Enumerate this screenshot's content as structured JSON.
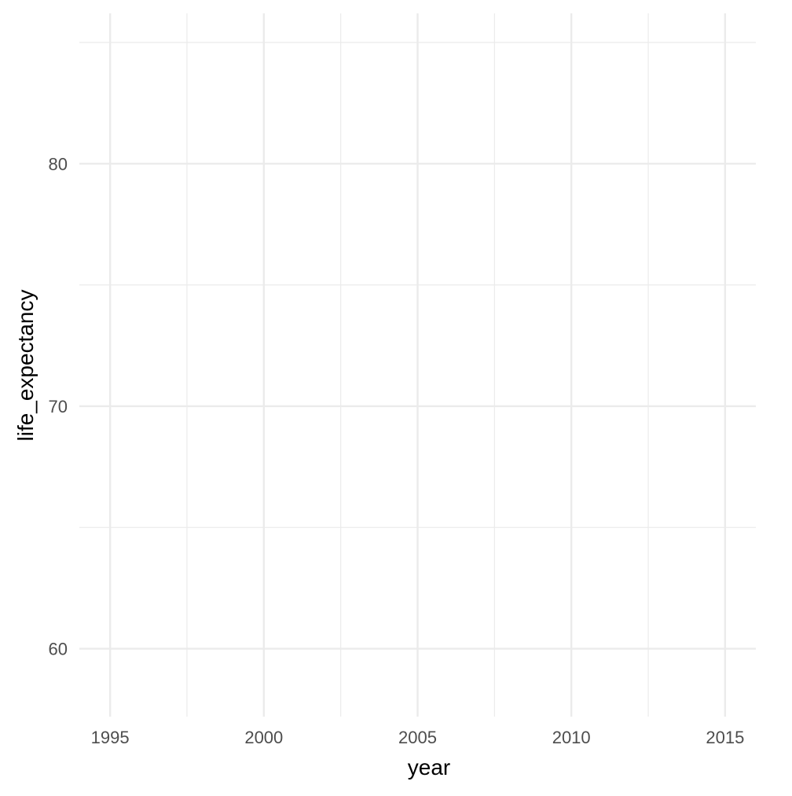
{
  "chart_data": {
    "type": "line",
    "title": "",
    "xlabel": "year",
    "ylabel": "life_expectancy",
    "xlim": [
      1994,
      2016
    ],
    "ylim": [
      57.2,
      86.2
    ],
    "x_ticks": [
      1995,
      2000,
      2005,
      2010,
      2015
    ],
    "x_minor_ticks": [
      1997.5,
      2002.5,
      2007.5,
      2012.5
    ],
    "y_ticks": [
      60,
      70,
      80
    ],
    "y_minor_ticks": [
      65,
      75,
      85
    ],
    "series": [],
    "grid": true,
    "legend": "none"
  },
  "style": {
    "background": "#ffffff",
    "major_grid_color": "#ebebeb",
    "minor_grid_color": "#ebebeb",
    "tick_label_color": "#4d4d4d",
    "axis_title_color": "#000000"
  }
}
